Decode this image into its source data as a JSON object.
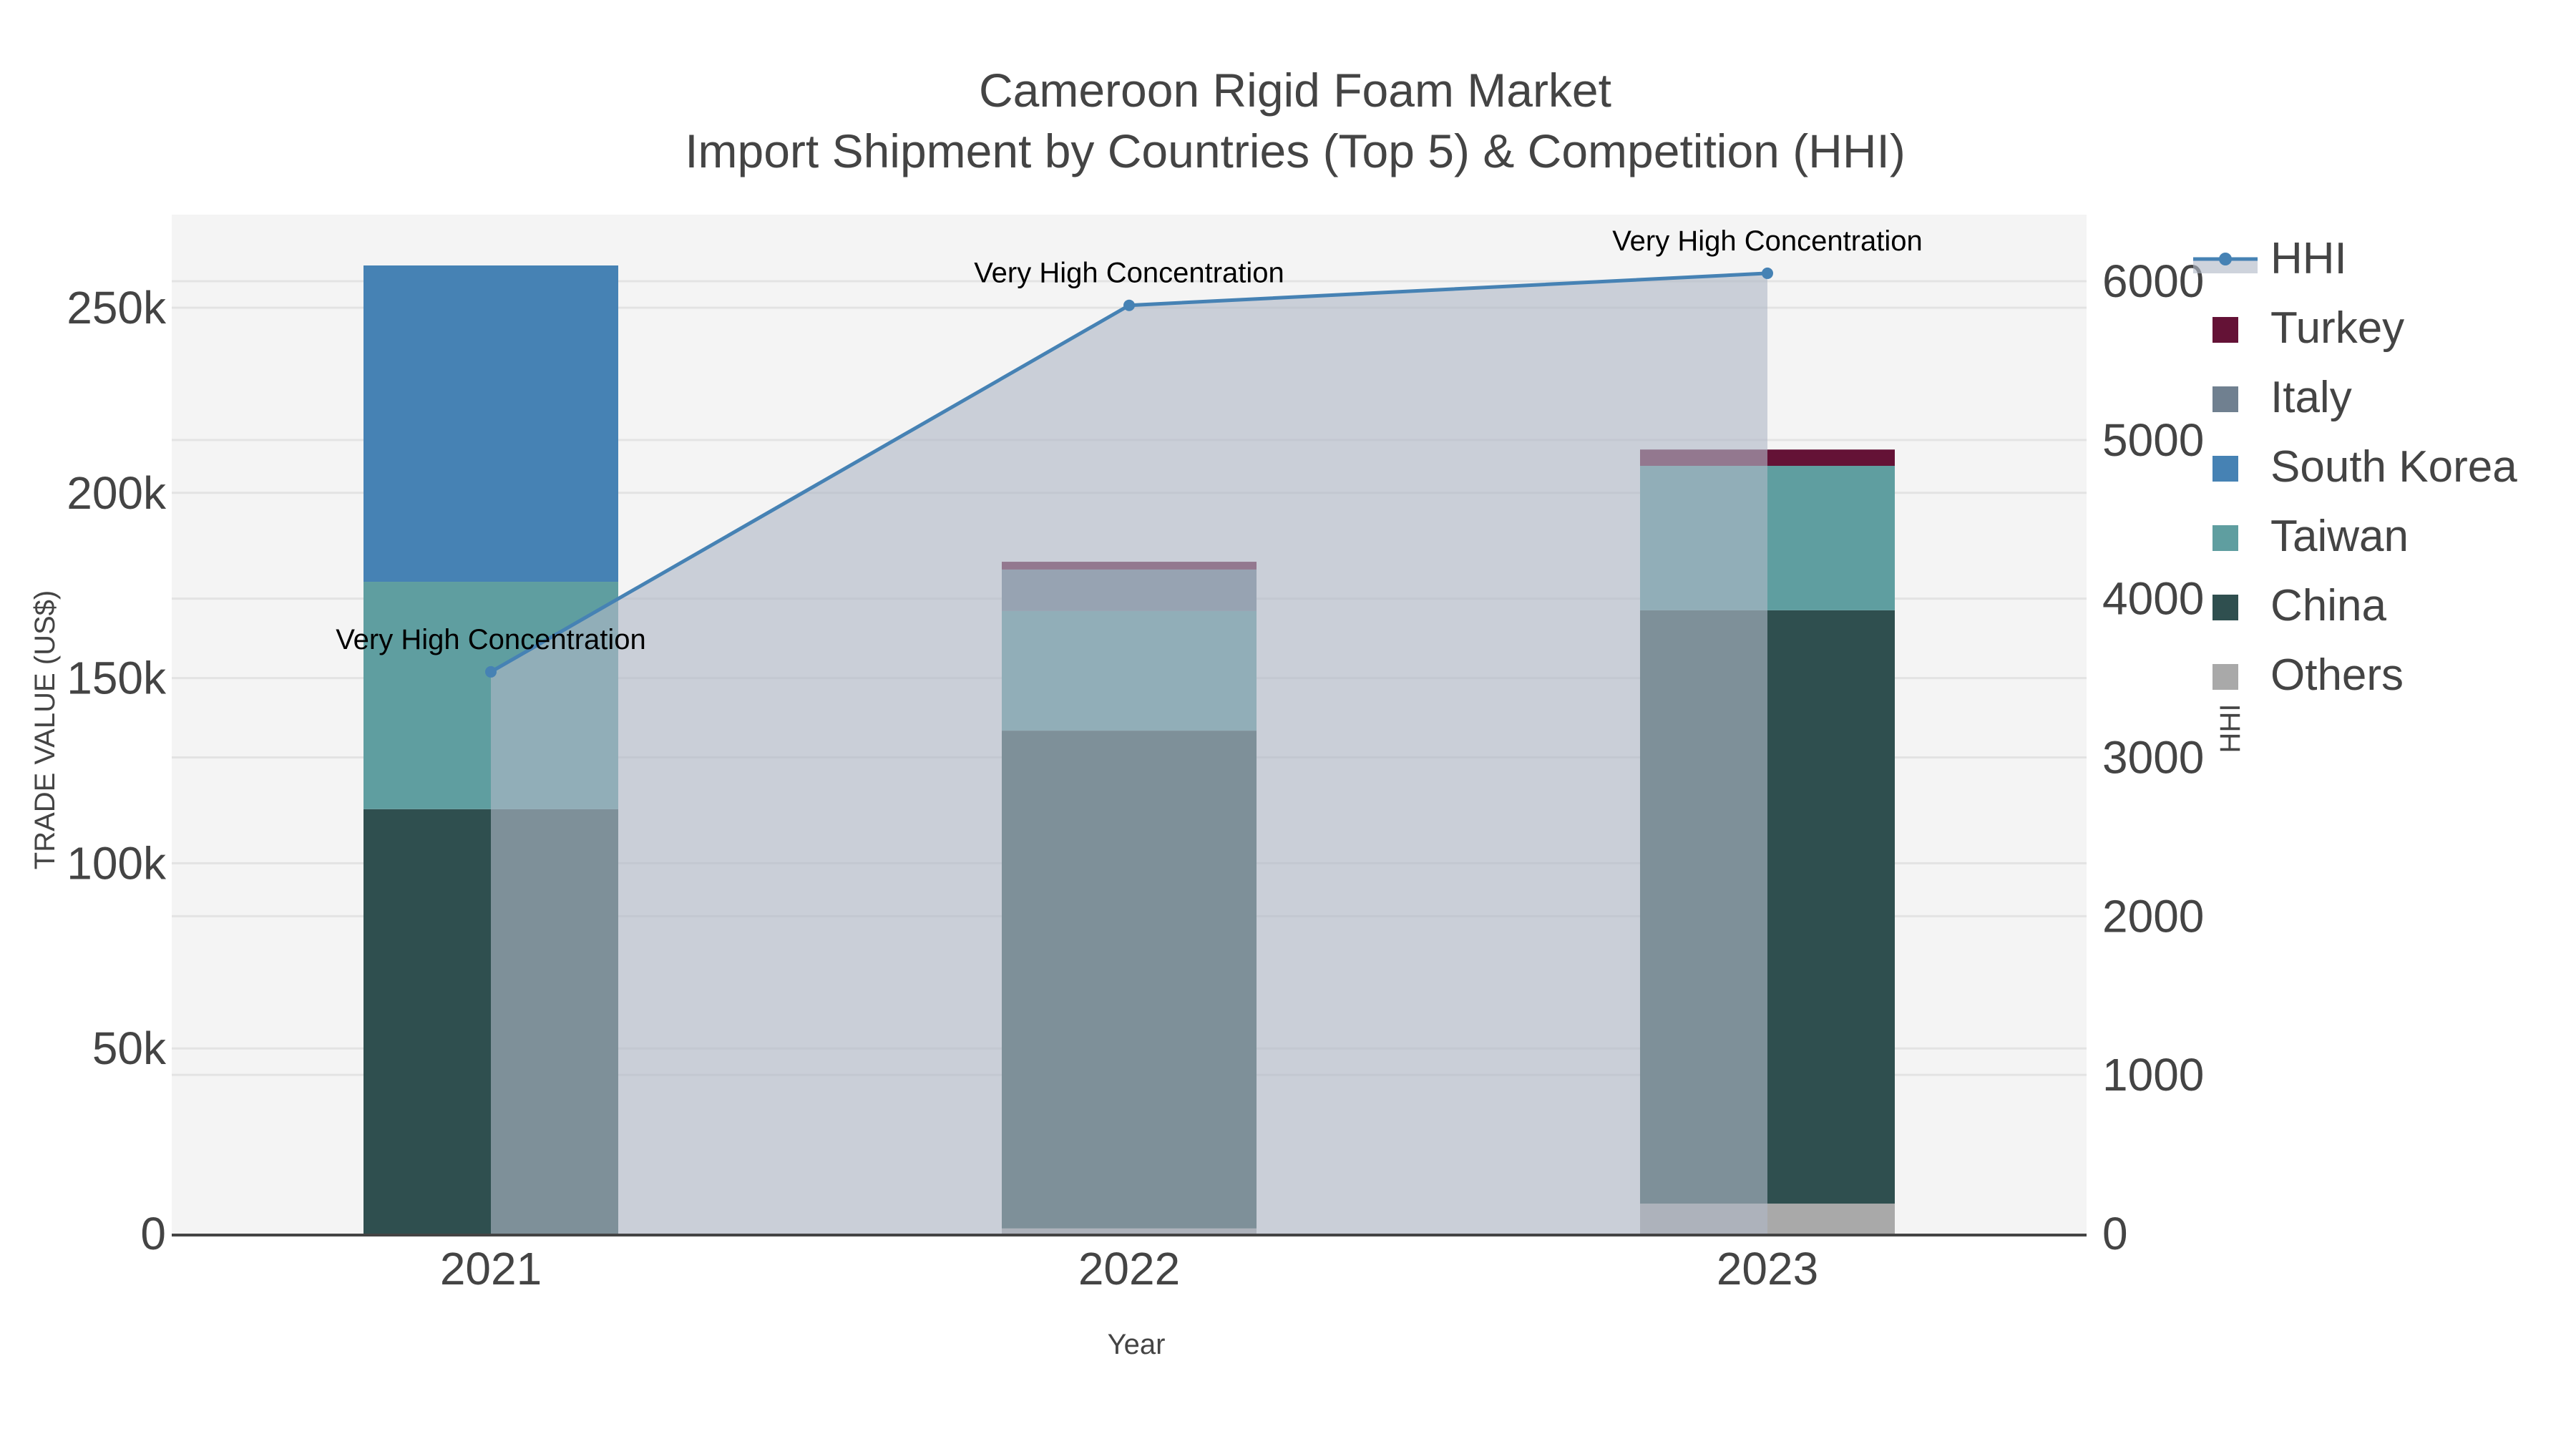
{
  "title": {
    "line1": "Cameroon Rigid Foam Market",
    "line2": "Import Shipment by Countries (Top 5) & Competition (HHI)"
  },
  "axes": {
    "x_title": "Year",
    "y_left_title": "TRADE VALUE (US$)",
    "y_right_title": "HHI",
    "x_ticks": [
      "2021",
      "2022",
      "2023"
    ],
    "y_left_ticks": [
      "0",
      "50k",
      "100k",
      "150k",
      "200k",
      "250k"
    ],
    "y_right_ticks": [
      "0",
      "1000",
      "2000",
      "3000",
      "4000",
      "5000",
      "6000"
    ]
  },
  "legend": [
    {
      "label": "HHI",
      "type": "line",
      "color": "#4682b4"
    },
    {
      "label": "Turkey",
      "type": "bar",
      "color": "#641236"
    },
    {
      "label": "Italy",
      "type": "bar",
      "color": "#708090"
    },
    {
      "label": "South Korea",
      "type": "bar",
      "color": "#4682b4"
    },
    {
      "label": "Taiwan",
      "type": "bar",
      "color": "#5f9ea0"
    },
    {
      "label": "China",
      "type": "bar",
      "color": "#2f4f4f"
    },
    {
      "label": "Others",
      "type": "bar",
      "color": "#a9a9a9"
    }
  ],
  "annotations": [
    "Very High Concentration",
    "Very High Concentration",
    "Very High Concentration"
  ],
  "colors": {
    "plot_bg": "#f4f4f4",
    "grid": "#e3e3e3",
    "hhi_line": "#4682b4",
    "hhi_fill": "rgba(176,184,198,0.62)",
    "axis_line": "#444444"
  },
  "chart_data": {
    "type": "bar",
    "title": "Cameroon Rigid Foam Market — Import Shipment by Countries (Top 5) & Competition (HHI)",
    "xlabel": "Year",
    "ylabel": "TRADE VALUE (US$)",
    "y2label": "HHI",
    "categories": [
      "2021",
      "2022",
      "2023"
    ],
    "ylim": [
      0,
      275000
    ],
    "y2lim": [
      0,
      6400
    ],
    "barmode": "stack",
    "series": [
      {
        "name": "Others",
        "color": "#a9a9a9",
        "values": [
          0,
          1400,
          8100
        ]
      },
      {
        "name": "China",
        "color": "#2f4f4f",
        "values": [
          114600,
          134400,
          160200
        ]
      },
      {
        "name": "Taiwan",
        "color": "#5f9ea0",
        "values": [
          61400,
          32300,
          39000
        ]
      },
      {
        "name": "South Korea",
        "color": "#4682b4",
        "values": [
          85400,
          0,
          0
        ]
      },
      {
        "name": "Italy",
        "color": "#708090",
        "values": [
          0,
          11200,
          0
        ]
      },
      {
        "name": "Turkey",
        "color": "#641236",
        "values": [
          0,
          2100,
          4400
        ]
      }
    ],
    "line_series": {
      "name": "HHI",
      "axis": "y2",
      "type": "line+area",
      "color": "#4682b4",
      "values": [
        3539,
        5848,
        6050
      ],
      "annotations": [
        "Very High Concentration",
        "Very High Concentration",
        "Very High Concentration"
      ]
    },
    "grid": true,
    "legend_position": "right"
  }
}
